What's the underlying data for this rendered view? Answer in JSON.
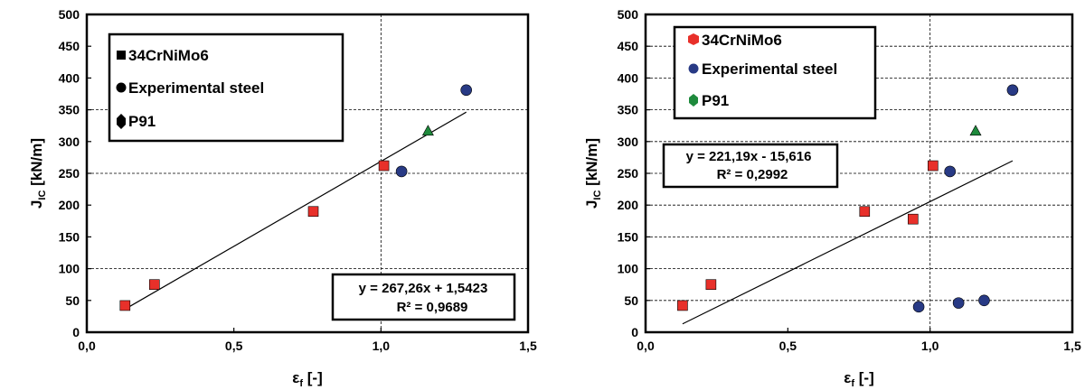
{
  "chart_data": [
    {
      "type": "scatter",
      "xlabel_main": "ε",
      "xlabel_sub": "f",
      "xlabel_unit": "[-]",
      "ylabel_main": "J",
      "ylabel_sub": "IC",
      "ylabel_unit": "[kN/m]",
      "xlim": [
        0,
        1.5
      ],
      "ylim": [
        0,
        500
      ],
      "xticks": [
        "0,0",
        "0,5",
        "1,0",
        "1,5"
      ],
      "yticks": [
        "0",
        "50",
        "100",
        "150",
        "200",
        "250",
        "300",
        "350",
        "400",
        "450",
        "500"
      ],
      "grid": "dashed horizontal at 100, 250, 350; dashed vertical at 1.0",
      "legend_position": "top-left",
      "series": [
        {
          "name": "34CrNiMo6",
          "marker": "square",
          "color": "#e8302a",
          "legend_marker_color": "#000000",
          "points": [
            [
              0.13,
              42
            ],
            [
              0.23,
              75
            ],
            [
              0.77,
              190
            ],
            [
              1.01,
              262
            ]
          ]
        },
        {
          "name": "Experimental steel",
          "marker": "circle",
          "color": "#283a85",
          "legend_marker_color": "#000000",
          "points": [
            [
              1.07,
              253
            ],
            [
              1.29,
              381
            ]
          ]
        },
        {
          "name": "P91",
          "marker": "triangle",
          "color": "#1e8a3c",
          "legend_marker_color": "#000000",
          "points": [
            [
              1.16,
              317
            ]
          ]
        }
      ],
      "trendline": {
        "x": [
          0.13,
          1.29
        ],
        "slope": 267.26,
        "intercept": 1.5423
      },
      "equation_line1": "y = 267,26x + 1,5423",
      "equation_line2": "R² = 0,9689",
      "equation_position": "bottom-right"
    },
    {
      "type": "scatter",
      "xlabel_main": "ε",
      "xlabel_sub": "f",
      "xlabel_unit": "[-]",
      "ylabel_main": "J",
      "ylabel_sub": "IC",
      "ylabel_unit": "[kN/m]",
      "xlim": [
        0,
        1.5
      ],
      "ylim": [
        0,
        500
      ],
      "xticks": [
        "0,0",
        "0,5",
        "1,0",
        "1,5"
      ],
      "yticks": [
        "0",
        "50",
        "100",
        "150",
        "200",
        "250",
        "300",
        "350",
        "400",
        "450",
        "500"
      ],
      "grid": "dashed horizontal every 50; dashed vertical at 1.0",
      "legend_position": "top-left",
      "series": [
        {
          "name": "34CrNiMo6",
          "marker": "square",
          "color": "#e8302a",
          "legend_marker_color": "#e8302a",
          "points": [
            [
              0.13,
              42
            ],
            [
              0.23,
              75
            ],
            [
              0.77,
              190
            ],
            [
              0.94,
              178
            ],
            [
              1.01,
              262
            ]
          ]
        },
        {
          "name": "Experimental steel",
          "marker": "circle",
          "color": "#283a85",
          "legend_marker_color": "#283a85",
          "points": [
            [
              0.96,
              40
            ],
            [
              1.07,
              253
            ],
            [
              1.1,
              46
            ],
            [
              1.19,
              50
            ],
            [
              1.29,
              381
            ]
          ]
        },
        {
          "name": "P91",
          "marker": "triangle",
          "color": "#1e8a3c",
          "legend_marker_color": "#1e8a3c",
          "points": [
            [
              1.16,
              317
            ]
          ]
        }
      ],
      "trendline": {
        "x": [
          0.13,
          1.29
        ],
        "slope": 221.19,
        "intercept": -15.616
      },
      "equation_line1": "y = 221,19x - 15,616",
      "equation_line2": "R² = 0,2992",
      "equation_position": "middle-left"
    }
  ]
}
